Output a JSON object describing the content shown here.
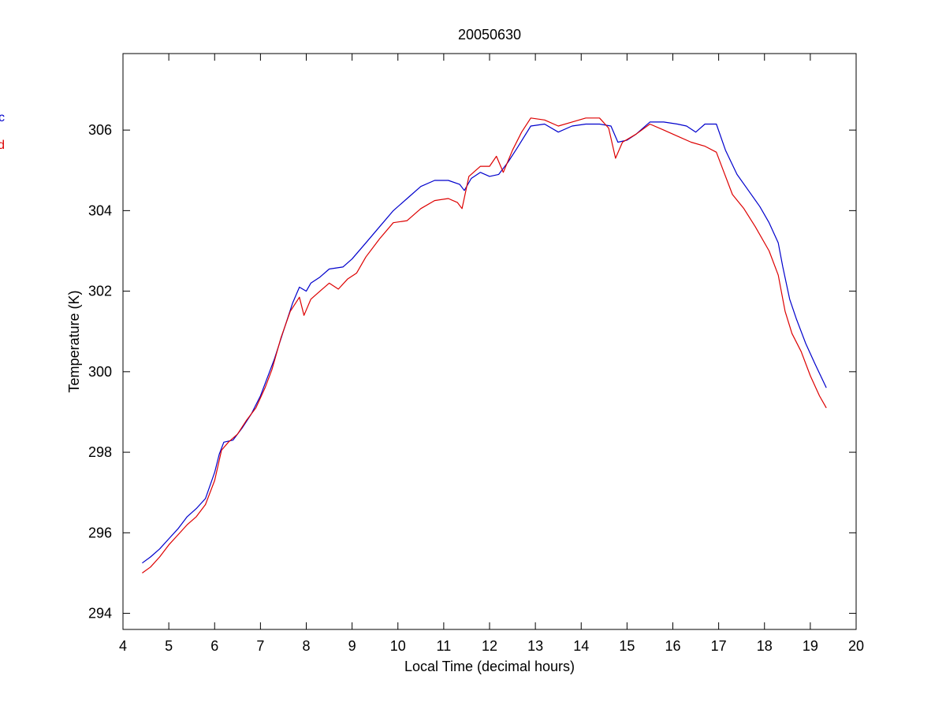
{
  "chart_data": {
    "type": "line",
    "title": "20050630",
    "xlabel": "Local Time (decimal hours)",
    "ylabel": "Temperature (K)",
    "xlim": [
      4,
      20
    ],
    "ylim": [
      293.6,
      307.9
    ],
    "xticks": [
      4,
      5,
      6,
      7,
      8,
      9,
      10,
      11,
      12,
      13,
      14,
      15,
      16,
      17,
      18,
      19,
      20
    ],
    "yticks": [
      294,
      296,
      298,
      300,
      302,
      304,
      306
    ],
    "grid": false,
    "legend_position": "left, outside plot (partially clipped)",
    "series": [
      {
        "name": "c",
        "color": "#0000cc",
        "points": [
          [
            4.42,
            295.25
          ],
          [
            4.6,
            295.4
          ],
          [
            4.8,
            295.6
          ],
          [
            5.0,
            295.85
          ],
          [
            5.2,
            296.1
          ],
          [
            5.4,
            296.4
          ],
          [
            5.6,
            296.6
          ],
          [
            5.8,
            296.85
          ],
          [
            6.0,
            297.5
          ],
          [
            6.1,
            297.95
          ],
          [
            6.2,
            298.25
          ],
          [
            6.4,
            298.3
          ],
          [
            6.6,
            298.6
          ],
          [
            6.8,
            298.95
          ],
          [
            7.0,
            299.4
          ],
          [
            7.2,
            300.0
          ],
          [
            7.3,
            300.3
          ],
          [
            7.5,
            301.0
          ],
          [
            7.7,
            301.7
          ],
          [
            7.85,
            302.1
          ],
          [
            8.0,
            302.0
          ],
          [
            8.1,
            302.2
          ],
          [
            8.3,
            302.35
          ],
          [
            8.5,
            302.55
          ],
          [
            8.8,
            302.6
          ],
          [
            9.0,
            302.8
          ],
          [
            9.3,
            303.2
          ],
          [
            9.6,
            303.6
          ],
          [
            9.9,
            304.0
          ],
          [
            10.2,
            304.3
          ],
          [
            10.5,
            304.6
          ],
          [
            10.8,
            304.75
          ],
          [
            11.1,
            304.75
          ],
          [
            11.35,
            304.65
          ],
          [
            11.45,
            304.5
          ],
          [
            11.6,
            304.8
          ],
          [
            11.8,
            304.95
          ],
          [
            12.0,
            304.85
          ],
          [
            12.2,
            304.9
          ],
          [
            12.4,
            305.2
          ],
          [
            12.6,
            305.55
          ],
          [
            12.9,
            306.1
          ],
          [
            13.2,
            306.15
          ],
          [
            13.5,
            305.95
          ],
          [
            13.8,
            306.1
          ],
          [
            14.1,
            306.15
          ],
          [
            14.4,
            306.15
          ],
          [
            14.65,
            306.1
          ],
          [
            14.8,
            305.7
          ],
          [
            15.0,
            305.75
          ],
          [
            15.2,
            305.9
          ],
          [
            15.5,
            306.2
          ],
          [
            15.8,
            306.2
          ],
          [
            16.1,
            306.15
          ],
          [
            16.3,
            306.1
          ],
          [
            16.5,
            305.95
          ],
          [
            16.7,
            306.15
          ],
          [
            16.95,
            306.15
          ],
          [
            17.15,
            305.5
          ],
          [
            17.4,
            304.9
          ],
          [
            17.65,
            304.5
          ],
          [
            17.9,
            304.1
          ],
          [
            18.1,
            303.7
          ],
          [
            18.3,
            303.2
          ],
          [
            18.4,
            302.6
          ],
          [
            18.55,
            301.8
          ],
          [
            18.7,
            301.3
          ],
          [
            18.9,
            300.7
          ],
          [
            19.1,
            300.2
          ],
          [
            19.35,
            299.6
          ]
        ]
      },
      {
        "name": "d",
        "color": "#dd0000",
        "points": [
          [
            4.42,
            295.0
          ],
          [
            4.6,
            295.15
          ],
          [
            4.8,
            295.4
          ],
          [
            5.0,
            295.7
          ],
          [
            5.2,
            295.95
          ],
          [
            5.4,
            296.2
          ],
          [
            5.6,
            296.4
          ],
          [
            5.8,
            296.7
          ],
          [
            6.0,
            297.3
          ],
          [
            6.15,
            298.05
          ],
          [
            6.3,
            298.25
          ],
          [
            6.5,
            298.45
          ],
          [
            6.7,
            298.8
          ],
          [
            6.9,
            299.1
          ],
          [
            7.1,
            299.6
          ],
          [
            7.25,
            300.05
          ],
          [
            7.45,
            300.85
          ],
          [
            7.65,
            301.5
          ],
          [
            7.85,
            301.85
          ],
          [
            7.95,
            301.4
          ],
          [
            8.1,
            301.8
          ],
          [
            8.3,
            302.0
          ],
          [
            8.5,
            302.2
          ],
          [
            8.7,
            302.05
          ],
          [
            8.9,
            302.3
          ],
          [
            9.1,
            302.45
          ],
          [
            9.3,
            302.85
          ],
          [
            9.6,
            303.3
          ],
          [
            9.9,
            303.7
          ],
          [
            10.2,
            303.75
          ],
          [
            10.5,
            304.05
          ],
          [
            10.8,
            304.25
          ],
          [
            11.1,
            304.3
          ],
          [
            11.3,
            304.2
          ],
          [
            11.4,
            304.05
          ],
          [
            11.55,
            304.85
          ],
          [
            11.8,
            305.1
          ],
          [
            12.0,
            305.1
          ],
          [
            12.15,
            305.35
          ],
          [
            12.3,
            304.95
          ],
          [
            12.5,
            305.5
          ],
          [
            12.7,
            305.95
          ],
          [
            12.9,
            306.3
          ],
          [
            13.2,
            306.25
          ],
          [
            13.5,
            306.1
          ],
          [
            13.8,
            306.2
          ],
          [
            14.1,
            306.3
          ],
          [
            14.4,
            306.3
          ],
          [
            14.6,
            306.05
          ],
          [
            14.75,
            305.3
          ],
          [
            14.9,
            305.7
          ],
          [
            15.2,
            305.9
          ],
          [
            15.5,
            306.15
          ],
          [
            15.8,
            306.0
          ],
          [
            16.1,
            305.85
          ],
          [
            16.4,
            305.7
          ],
          [
            16.7,
            305.6
          ],
          [
            16.95,
            305.45
          ],
          [
            17.1,
            305.0
          ],
          [
            17.3,
            304.4
          ],
          [
            17.55,
            304.05
          ],
          [
            17.8,
            303.6
          ],
          [
            18.1,
            303.0
          ],
          [
            18.3,
            302.4
          ],
          [
            18.45,
            301.5
          ],
          [
            18.6,
            300.95
          ],
          [
            18.8,
            300.5
          ],
          [
            19.0,
            299.9
          ],
          [
            19.2,
            299.4
          ],
          [
            19.35,
            299.1
          ]
        ]
      }
    ]
  }
}
